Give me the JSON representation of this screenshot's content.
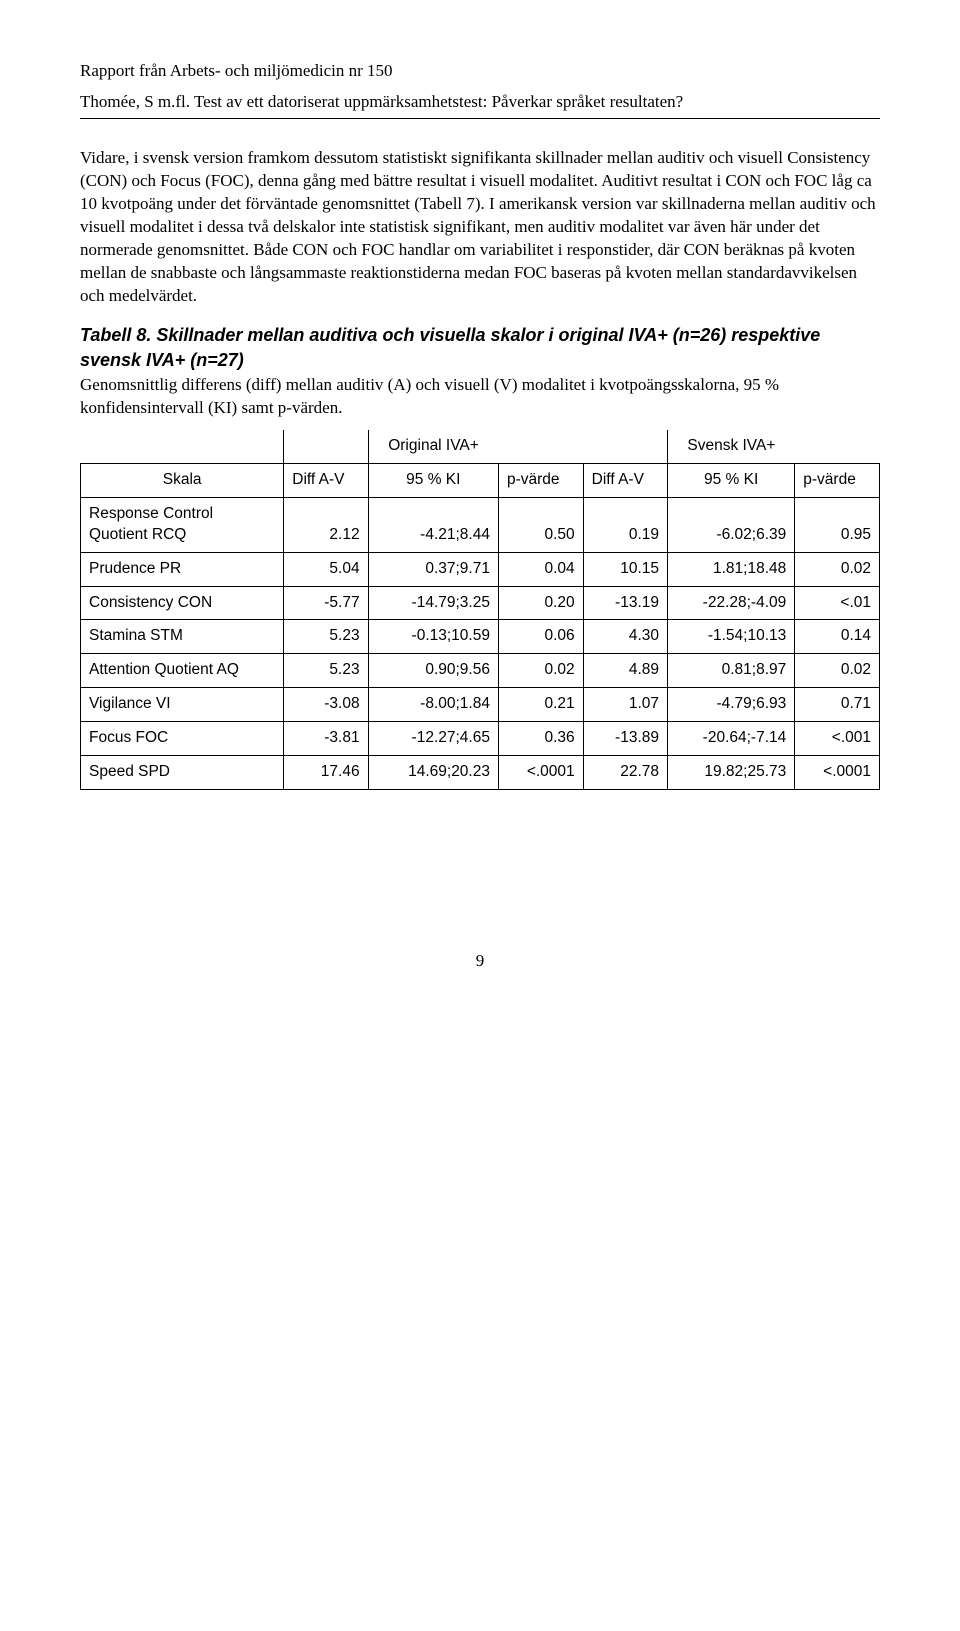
{
  "header": {
    "line1": "Rapport från Arbets- och miljömedicin nr 150",
    "line2": "Thomée, S m.fl. Test av ett datoriserat uppmärksamhetstest: Påverkar språket resultaten?"
  },
  "paragraph": "Vidare, i svensk version framkom dessutom statistiskt signifikanta skillnader mellan auditiv och visuell Consistency (CON) och Focus (FOC), denna gång med bättre resultat i visuell modalitet. Auditivt resultat i CON och FOC låg ca 10 kvotpoäng under det förväntade genomsnittet (Tabell 7). I amerikansk version var skillnaderna mellan auditiv och visuell modalitet i dessa två delskalor inte statistisk signifikant, men auditiv modalitet var även här under det normerade genomsnittet. Både CON och FOC handlar om variabilitet i responstider, där CON beräknas på kvoten mellan de snabbaste och långsammaste reaktionstiderna medan FOC baseras på kvoten mellan standardavvikelsen och medelvärdet.",
  "table": {
    "heading": "Tabell 8. Skillnader mellan auditiva och visuella skalor i original IVA+ (n=26) respektive svensk IVA+ (n=27)",
    "subtext": "Genomsnittlig differens (diff) mellan auditiv (A) och visuell (V) modalitet i kvotpoängsskalorna, 95 % konfidensintervall (KI) samt p-värden.",
    "group_headers": [
      "Original IVA+",
      "Svensk IVA+"
    ],
    "col_headers": [
      "Skala",
      "Diff A-V",
      "95 % KI",
      "p-värde",
      "Diff A-V",
      "95 % KI",
      "p-värde"
    ],
    "rows": [
      {
        "label_html": "Response Control<br>Quotient RCQ",
        "cells": [
          "2.12",
          "-4.21;8.44",
          "0.50",
          "0.19",
          "-6.02;6.39",
          "0.95"
        ]
      },
      {
        "label_html": "Prudence PR",
        "cells": [
          "5.04",
          "0.37;9.71",
          "0.04",
          "10.15",
          "1.81;18.48",
          "0.02"
        ]
      },
      {
        "label_html": "Consistency CON",
        "cells": [
          "-5.77",
          "-14.79;3.25",
          "0.20",
          "-13.19",
          "-22.28;-4.09",
          "<.01"
        ]
      },
      {
        "label_html": "Stamina STM",
        "cells": [
          "5.23",
          "-0.13;10.59",
          "0.06",
          "4.30",
          "-1.54;10.13",
          "0.14"
        ]
      },
      {
        "label_html": "Attention Quotient AQ",
        "cells": [
          "5.23",
          "0.90;9.56",
          "0.02",
          "4.89",
          "0.81;8.97",
          "0.02"
        ]
      },
      {
        "label_html": "Vigilance VI",
        "cells": [
          "-3.08",
          "-8.00;1.84",
          "0.21",
          "1.07",
          "-4.79;6.93",
          "0.71"
        ]
      },
      {
        "label_html": "Focus FOC",
        "cells": [
          "-3.81",
          "-12.27;4.65",
          "0.36",
          "-13.89",
          "-20.64;-7.14",
          "<.001"
        ]
      },
      {
        "label_html": "Speed SPD",
        "cells": [
          "17.46",
          "14.69;20.23",
          "<.0001",
          "22.78",
          "19.82;25.73",
          "<.0001"
        ]
      }
    ]
  },
  "page_number": "9"
}
